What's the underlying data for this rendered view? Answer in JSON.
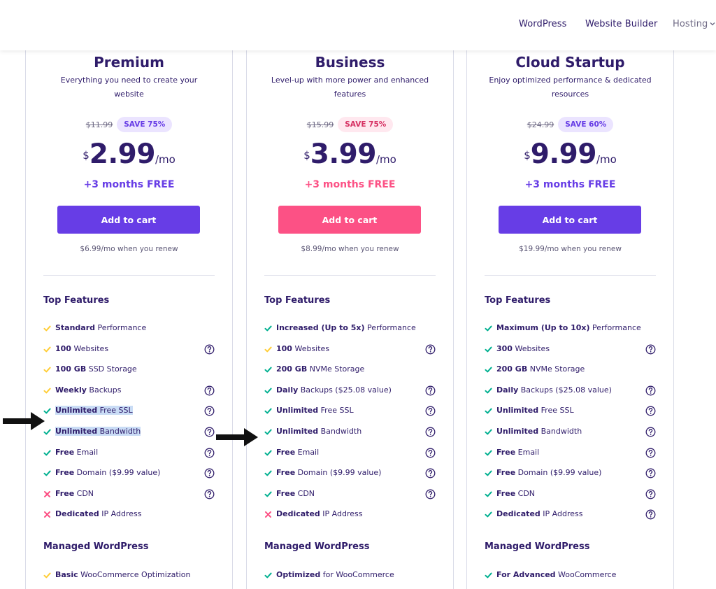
{
  "nav": {
    "items": [
      "WordPress",
      "Website Builder",
      "Hosting"
    ]
  },
  "colors": {
    "purple": "#673de6",
    "pink": "#fc5185",
    "check_green": "#00b090",
    "check_yellow": "#ffcd35",
    "cross_red": "#fc5185"
  },
  "plans": [
    {
      "name": "Premium",
      "description": "Everything you need to create your website",
      "old_price": "$11.99",
      "save": "SAVE 75%",
      "currency": "$",
      "price": "2.99",
      "per": "/mo",
      "bonus": "+3 months FREE",
      "cta": "Add to cart",
      "renew": "$6.99/mo when you renew",
      "accent": "#673de6",
      "top_features_title": "Top Features",
      "features": [
        {
          "bold": "Standard",
          "rest": " Performance",
          "mark": "check-yellow",
          "help": false
        },
        {
          "bold": "100",
          "rest": " Websites",
          "mark": "check-yellow",
          "help": true
        },
        {
          "bold": "100 GB",
          "rest": " SSD Storage",
          "mark": "check-yellow",
          "help": false
        },
        {
          "bold": "Weekly",
          "rest": " Backups",
          "mark": "check-yellow",
          "help": true
        },
        {
          "bold": "Unlimited",
          "rest": " Free SSL",
          "mark": "check-green",
          "help": true,
          "highlight": true
        },
        {
          "bold": "Unlimited",
          "rest": " Bandwidth",
          "mark": "check-green",
          "help": true,
          "highlight": true
        },
        {
          "bold": "Free",
          "rest": " Email",
          "mark": "check-green",
          "help": true
        },
        {
          "bold": "Free",
          "rest": " Domain ($9.99 value)",
          "mark": "check-green",
          "help": true
        },
        {
          "bold": "Free",
          "rest": " CDN",
          "mark": "cross",
          "help": true
        },
        {
          "bold": "Dedicated",
          "rest": " IP Address",
          "mark": "cross",
          "help": false
        }
      ],
      "managed_title": "Managed WordPress",
      "managed_first": {
        "bold": "Basic",
        "rest": " WooCommerce Optimization",
        "mark": "check-yellow"
      }
    },
    {
      "name": "Business",
      "description": "Level-up with more power and enhanced features",
      "old_price": "$15.99",
      "save": "SAVE 75%",
      "currency": "$",
      "price": "3.99",
      "per": "/mo",
      "bonus": "+3 months FREE",
      "cta": "Add to cart",
      "renew": "$8.99/mo when you renew",
      "accent": "#fc5185",
      "top_features_title": "Top Features",
      "features": [
        {
          "bold": "Increased (Up to 5x)",
          "rest": " Performance",
          "mark": "check-green",
          "help": false
        },
        {
          "bold": "100",
          "rest": " Websites",
          "mark": "check-yellow",
          "help": true
        },
        {
          "bold": "200 GB",
          "rest": " NVMe Storage",
          "mark": "check-green",
          "help": false
        },
        {
          "bold": "Daily",
          "rest": " Backups ($25.08 value)",
          "mark": "check-green",
          "help": true
        },
        {
          "bold": "Unlimited",
          "rest": " Free SSL",
          "mark": "check-green",
          "help": true
        },
        {
          "bold": "Unlimited",
          "rest": " Bandwidth",
          "mark": "check-green",
          "help": true
        },
        {
          "bold": "Free",
          "rest": " Email",
          "mark": "check-green",
          "help": true
        },
        {
          "bold": "Free",
          "rest": " Domain ($9.99 value)",
          "mark": "check-green",
          "help": true
        },
        {
          "bold": "Free",
          "rest": " CDN",
          "mark": "check-green",
          "help": true
        },
        {
          "bold": "Dedicated",
          "rest": " IP Address",
          "mark": "cross",
          "help": false
        }
      ],
      "managed_title": "Managed WordPress",
      "managed_first": {
        "bold": "Optimized",
        "rest": " for WooCommerce",
        "mark": "check-green"
      }
    },
    {
      "name": "Cloud Startup",
      "description": "Enjoy optimized performance & dedicated resources",
      "old_price": "$24.99",
      "save": "SAVE 60%",
      "currency": "$",
      "price": "9.99",
      "per": "/mo",
      "bonus": "+3 months FREE",
      "cta": "Add to cart",
      "renew": "$19.99/mo when you renew",
      "accent": "#673de6",
      "top_features_title": "Top Features",
      "features": [
        {
          "bold": "Maximum (Up to 10x)",
          "rest": " Performance",
          "mark": "check-green",
          "help": false
        },
        {
          "bold": "300",
          "rest": " Websites",
          "mark": "check-green",
          "help": true
        },
        {
          "bold": "200 GB",
          "rest": " NVMe Storage",
          "mark": "check-green",
          "help": false
        },
        {
          "bold": "Daily",
          "rest": " Backups ($25.08 value)",
          "mark": "check-green",
          "help": true
        },
        {
          "bold": "Unlimited",
          "rest": " Free SSL",
          "mark": "check-green",
          "help": true
        },
        {
          "bold": "Unlimited",
          "rest": " Bandwidth",
          "mark": "check-green",
          "help": true
        },
        {
          "bold": "Free",
          "rest": " Email",
          "mark": "check-green",
          "help": true
        },
        {
          "bold": "Free",
          "rest": " Domain ($9.99 value)",
          "mark": "check-green",
          "help": true
        },
        {
          "bold": "Free",
          "rest": " CDN",
          "mark": "check-green",
          "help": true
        },
        {
          "bold": "Dedicated",
          "rest": " IP Address",
          "mark": "check-green",
          "help": true
        }
      ],
      "managed_title": "Managed WordPress",
      "managed_first": {
        "bold": "For Advanced",
        "rest": " WooCommerce",
        "mark": "check-green"
      }
    }
  ],
  "annotations": [
    "black-arrow-right",
    "black-arrow-right"
  ]
}
